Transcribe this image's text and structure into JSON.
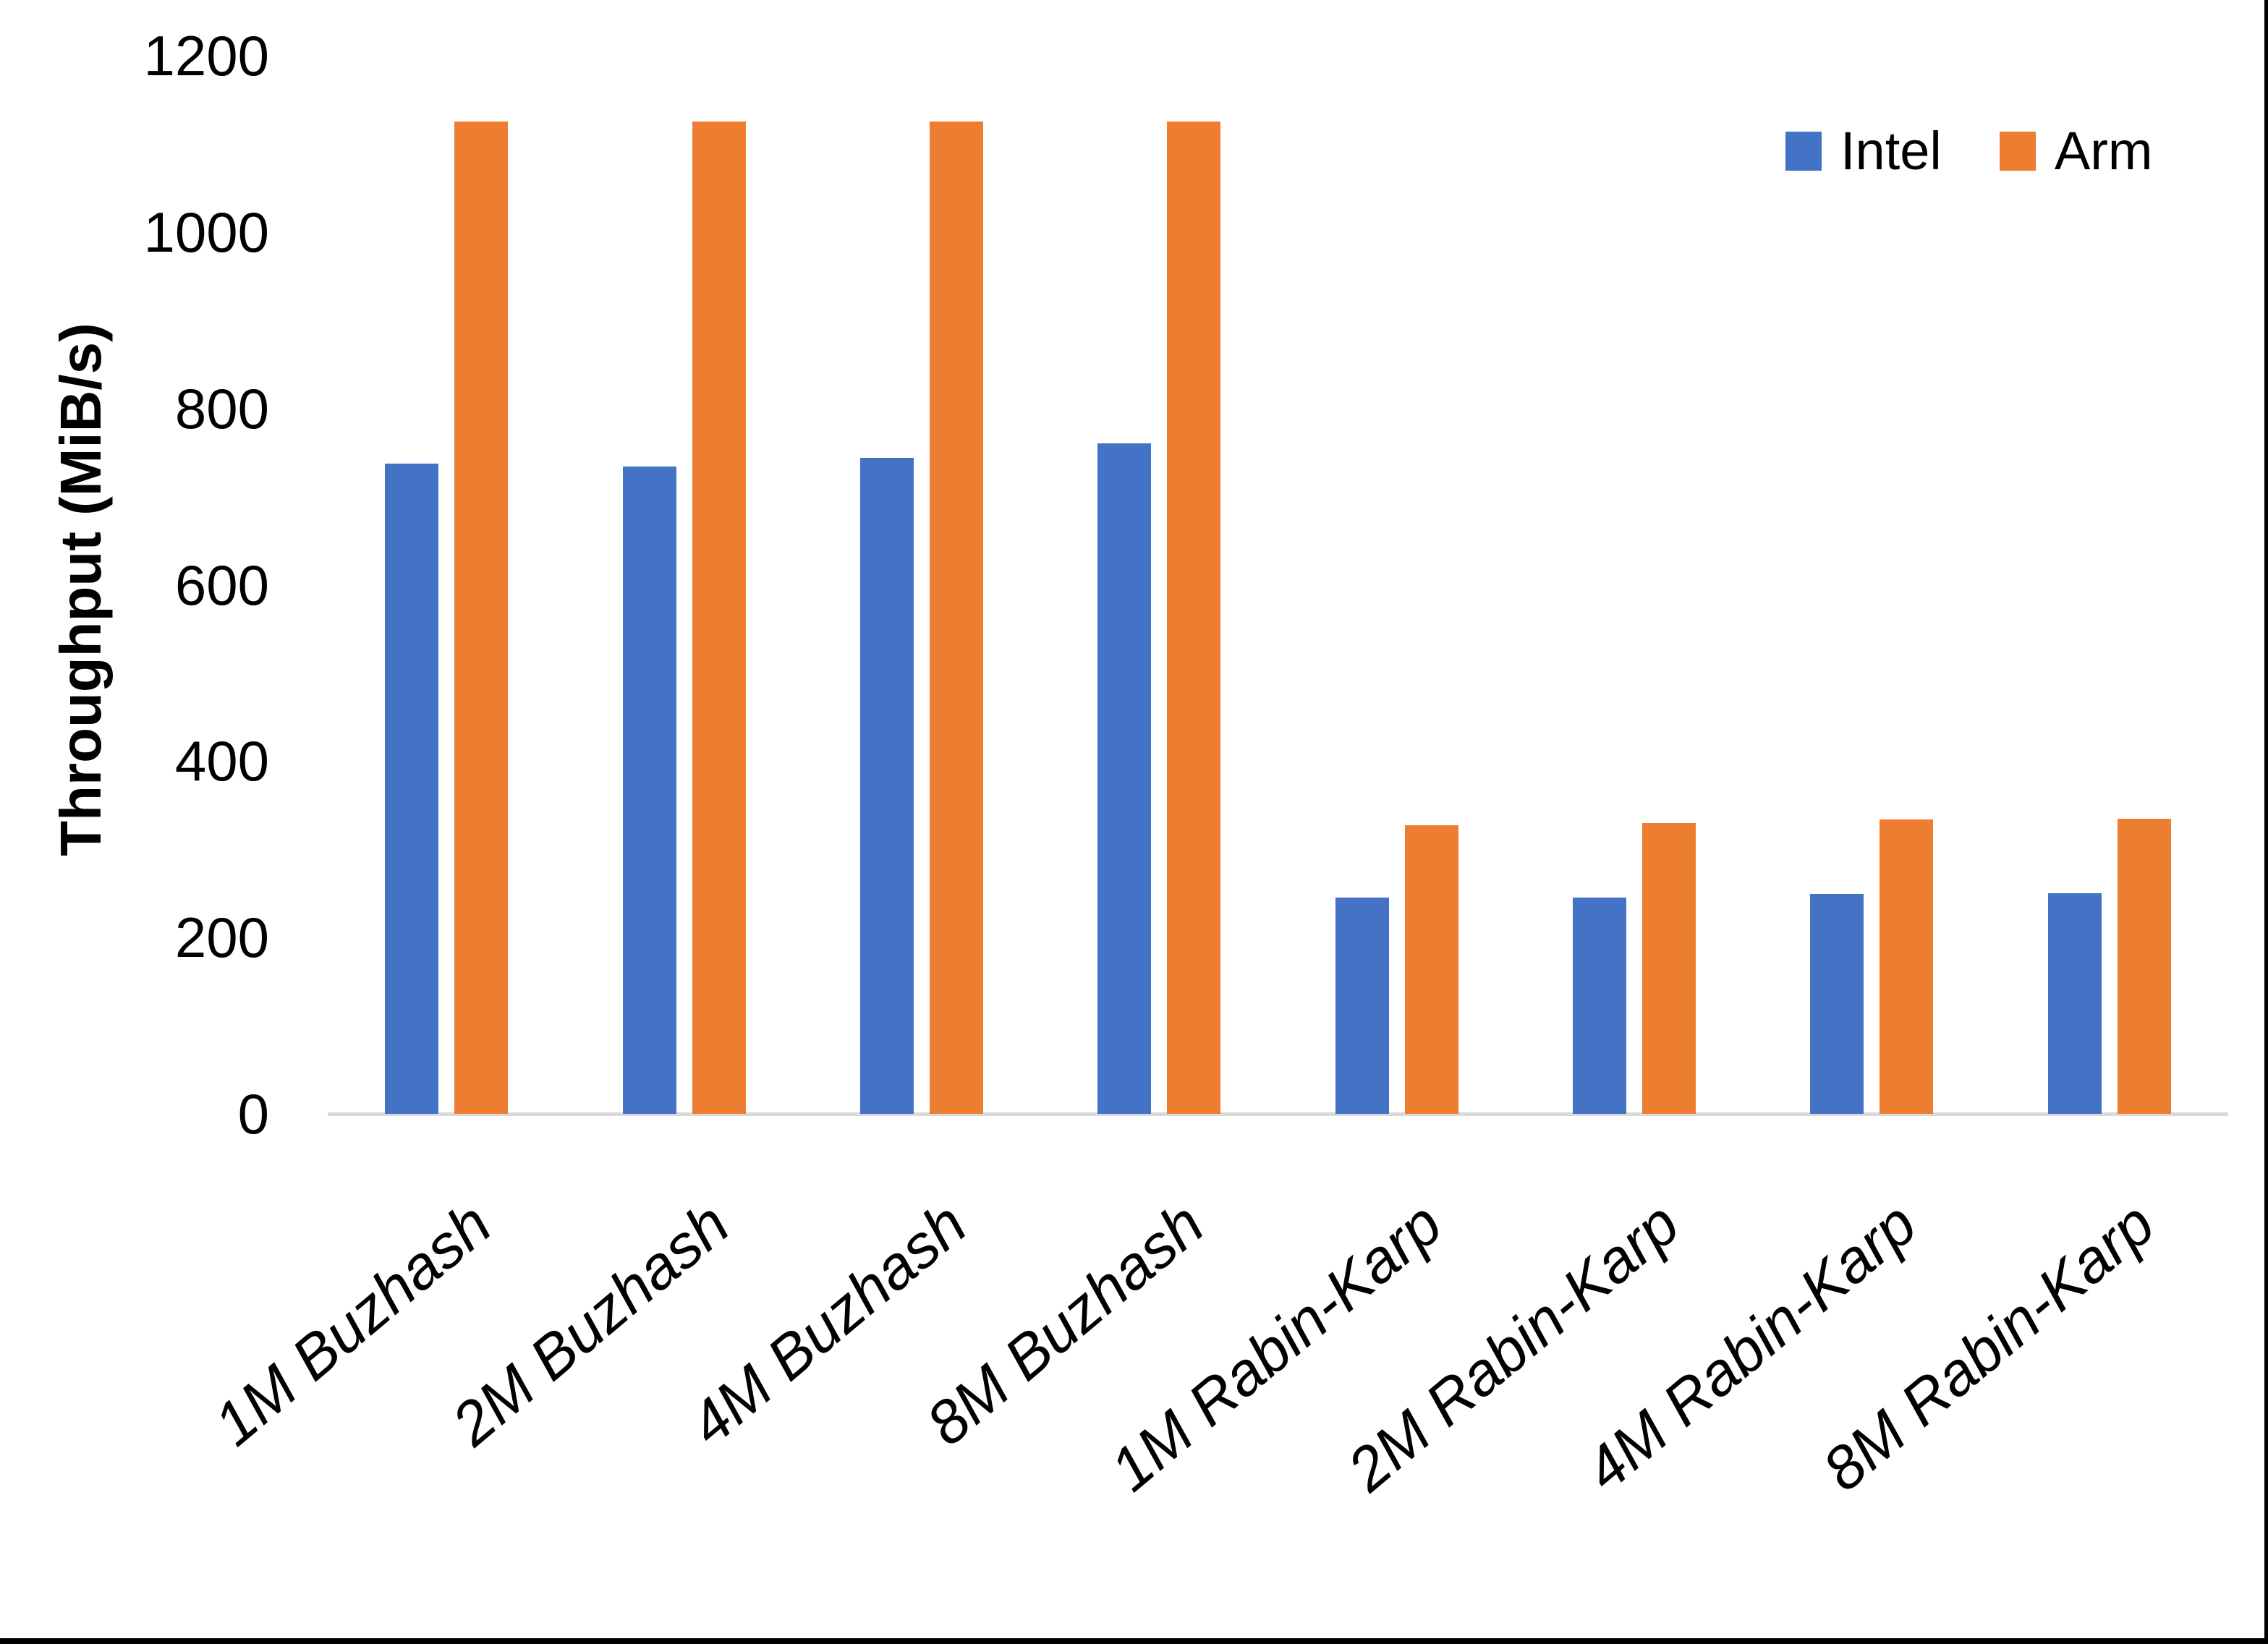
{
  "chart_data": {
    "type": "bar",
    "title": "",
    "ylabel": "Throughput (MiB/s)",
    "xlabel": "",
    "categories": [
      "1M Buzhash",
      "2M Buzhash",
      "4M Buzhash",
      "8M Buzhash",
      "1M Rabin-Karp",
      "2M Rabin-Karp",
      "4M Rabin-Karp",
      "8M Rabin-Karp"
    ],
    "series": [
      {
        "name": "Intel",
        "color": "#4472C4",
        "values": [
          737,
          734,
          744,
          760,
          245,
          245,
          249,
          250
        ]
      },
      {
        "name": "Arm",
        "color": "#ED7D31",
        "values": [
          1125,
          1125,
          1125,
          1125,
          327,
          330,
          334,
          335
        ]
      }
    ],
    "ylim": [
      0,
      1200
    ],
    "ytick_labels": [
      "0",
      "200",
      "400",
      "600",
      "800",
      "1000",
      "1200"
    ],
    "ytick_values": [
      0,
      200,
      400,
      600,
      800,
      1000,
      1200
    ],
    "grid": false,
    "legend_position": "top-right",
    "axis_line_color": "#D9D9D9",
    "text_color": "#000000"
  }
}
